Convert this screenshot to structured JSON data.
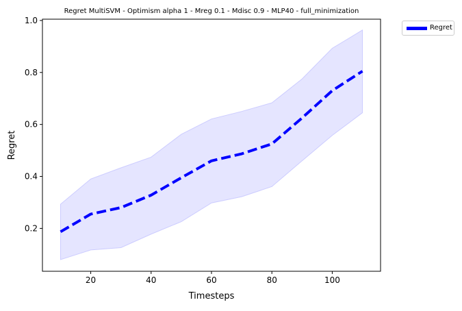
{
  "chart_data": {
    "type": "line",
    "title": "Regret MultiSVM - Optimism alpha 1 - Mreg 0.1 - Mdisc 0.9 - MLP40 - full_minimization",
    "xlabel": "Timesteps",
    "ylabel": "Regret",
    "xlim": [
      4,
      116
    ],
    "ylim": [
      0.035,
      1.005
    ],
    "xticks": [
      20,
      40,
      60,
      80,
      100
    ],
    "yticks": [
      0.2,
      0.4,
      0.6,
      0.8,
      1.0
    ],
    "xtick_labels": [
      "20",
      "40",
      "60",
      "80",
      "100"
    ],
    "ytick_labels": [
      "0.2",
      "0.4",
      "0.6",
      "0.8",
      "1.0"
    ],
    "grid": false,
    "legend_position": "outside-top-right",
    "series": [
      {
        "name": "Regret",
        "color": "#0000ff",
        "line_style": "dashed",
        "x": [
          10,
          20,
          30,
          40,
          50,
          60,
          70,
          80,
          90,
          100,
          110
        ],
        "values": [
          0.187,
          0.255,
          0.28,
          0.328,
          0.395,
          0.46,
          0.487,
          0.525,
          0.625,
          0.73,
          0.805
        ],
        "band_lower": [
          0.08,
          0.117,
          0.126,
          0.178,
          0.226,
          0.298,
          0.322,
          0.361,
          0.46,
          0.558,
          0.645
        ],
        "band_upper": [
          0.293,
          0.39,
          0.433,
          0.474,
          0.562,
          0.621,
          0.65,
          0.683,
          0.775,
          0.893,
          0.963
        ],
        "band_color": "#ccccff"
      }
    ]
  }
}
